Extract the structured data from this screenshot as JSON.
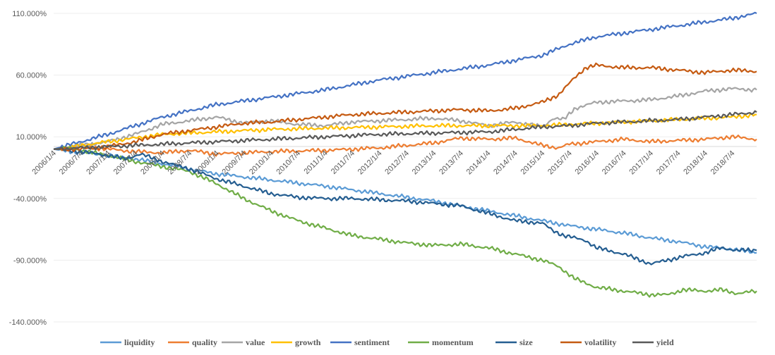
{
  "chart_data": {
    "type": "line",
    "title": "",
    "xlabel": "",
    "ylabel": "",
    "ylim": [
      -140,
      110
    ],
    "ytick_values": [
      110,
      60,
      10,
      -40,
      -90,
      -140
    ],
    "ytick_labels": [
      "110.000%",
      "60.000%",
      "10.000%",
      "-40.000%",
      "-90.000%",
      "-140.000%"
    ],
    "x_range": [
      2006.0,
      2018.95
    ],
    "x_tick_positions": [
      2006.0,
      2006.5,
      2007.0,
      2007.5,
      2008.0,
      2008.5,
      2009.0,
      2009.5,
      2010.0,
      2010.5,
      2011.0,
      2011.5,
      2012.0,
      2012.5,
      2013.0,
      2013.5,
      2014.0,
      2014.5,
      2015.0,
      2015.5,
      2016.0,
      2016.5,
      2017.0,
      2017.5,
      2018.0,
      2018.5
    ],
    "x_tick_labels": [
      "2006/1/4",
      "2006/7/4",
      "2007/1/4",
      "2007/7/4",
      "2008/1/4",
      "2008/7/4",
      "2009/1/4",
      "2009/7/4",
      "2010/1/4",
      "2010/7/4",
      "2011/1/4",
      "2011/7/4",
      "2012/1/4",
      "2012/7/4",
      "2013/1/4",
      "2013/7/4",
      "2014/1/4",
      "2014/7/4",
      "2015/1/4",
      "2015/7/4",
      "2016/1/4",
      "2016/7/4",
      "2017/1/4",
      "2017/7/4",
      "2018/1/4",
      "2018/7/4"
    ],
    "legend_position": "bottom",
    "series": [
      {
        "name": "liquidity",
        "color": "#5B9BD5",
        "x": [
          2006.0,
          2006.5,
          2007.0,
          2007.5,
          2008.0,
          2008.5,
          2009.0,
          2010.0,
          2011.0,
          2012.0,
          2013.0,
          2014.0,
          2015.0,
          2015.5,
          2016.0,
          2016.5,
          2017.0,
          2017.5,
          2018.0,
          2018.5,
          2018.95
        ],
        "values": [
          0,
          -3,
          -5,
          -8,
          -12,
          -16,
          -20,
          -25,
          -30,
          -36,
          -42,
          -50,
          -58,
          -62,
          -65,
          -68,
          -72,
          -75,
          -79,
          -81,
          -84
        ]
      },
      {
        "name": "quality",
        "color": "#ED7D31",
        "x": [
          2006.0,
          2006.5,
          2007.0,
          2007.5,
          2008.0,
          2008.5,
          2009.0,
          2009.5,
          2010.0,
          2011.0,
          2012.0,
          2013.0,
          2013.5,
          2014.0,
          2014.5,
          2015.0,
          2015.3,
          2015.5,
          2016.0,
          2016.5,
          2017.0,
          2017.5,
          2018.0,
          2018.5,
          2018.95
        ],
        "values": [
          0,
          2,
          0,
          -2,
          -3,
          -1,
          -4,
          -3,
          -2,
          -1,
          1,
          5,
          9,
          8,
          9,
          3,
          1,
          4,
          6,
          8,
          6,
          7,
          8,
          10,
          8
        ]
      },
      {
        "name": "value",
        "color": "#A5A5A5",
        "x": [
          2006.0,
          2006.5,
          2007.0,
          2007.5,
          2008.0,
          2008.5,
          2009.0,
          2009.5,
          2010.0,
          2010.5,
          2011.0,
          2011.5,
          2012.0,
          2012.5,
          2013.0,
          2013.5,
          2014.0,
          2014.5,
          2015.0,
          2015.2,
          2015.4,
          2015.6,
          2016.0,
          2016.5,
          2017.0,
          2017.5,
          2018.0,
          2018.5,
          2018.95
        ],
        "values": [
          0,
          3,
          6,
          12,
          20,
          23,
          26,
          21,
          23,
          20,
          19,
          22,
          23,
          24,
          25,
          23,
          19,
          22,
          18,
          25,
          24,
          33,
          38,
          39,
          40,
          43,
          47,
          49,
          48
        ]
      },
      {
        "name": "growth",
        "color": "#FFC000",
        "x": [
          2006.0,
          2006.5,
          2007.0,
          2007.5,
          2008.0,
          2009.0,
          2010.0,
          2011.0,
          2012.0,
          2013.0,
          2014.0,
          2015.0,
          2015.5,
          2016.0,
          2016.5,
          2017.0,
          2017.5,
          2018.0,
          2018.5,
          2018.95
        ],
        "values": [
          0,
          3,
          6,
          9,
          12,
          14,
          16,
          17,
          18,
          19,
          19,
          19,
          20,
          21,
          22,
          23,
          24,
          25,
          26,
          28
        ]
      },
      {
        "name": "sentiment",
        "color": "#4472C4",
        "x": [
          2006.0,
          2006.5,
          2007.0,
          2007.5,
          2008.0,
          2008.5,
          2009.0,
          2010.0,
          2011.0,
          2012.0,
          2013.0,
          2014.0,
          2015.0,
          2015.5,
          2016.0,
          2016.5,
          2017.0,
          2017.5,
          2018.0,
          2018.5,
          2018.95
        ],
        "values": [
          0,
          6,
          12,
          19,
          26,
          31,
          36,
          42,
          48,
          56,
          62,
          68,
          76,
          85,
          91,
          94,
          97,
          100,
          103,
          106,
          110
        ]
      },
      {
        "name": "momentum",
        "color": "#70AD47",
        "x": [
          2006.0,
          2006.3,
          2006.6,
          2007.0,
          2007.5,
          2008.0,
          2008.5,
          2009.0,
          2009.5,
          2010.0,
          2010.5,
          2011.0,
          2011.5,
          2012.0,
          2012.5,
          2013.0,
          2013.5,
          2014.0,
          2014.5,
          2015.0,
          2015.3,
          2015.6,
          2016.0,
          2016.5,
          2017.0,
          2017.3,
          2017.6,
          2018.0,
          2018.3,
          2018.6,
          2018.95
        ],
        "values": [
          0,
          1,
          -2,
          -5,
          -10,
          -14,
          -18,
          -28,
          -40,
          -50,
          -58,
          -64,
          -70,
          -73,
          -76,
          -78,
          -77,
          -80,
          -85,
          -90,
          -95,
          -105,
          -112,
          -115,
          -118,
          -118,
          -114,
          -115,
          -114,
          -117,
          -115
        ]
      },
      {
        "name": "size",
        "color": "#255E91",
        "x": [
          2006.0,
          2006.5,
          2007.0,
          2007.3,
          2007.6,
          2008.0,
          2008.5,
          2009.0,
          2009.5,
          2010.0,
          2010.5,
          2011.0,
          2011.5,
          2012.0,
          2012.5,
          2013.0,
          2013.5,
          2014.0,
          2014.5,
          2015.0,
          2015.2,
          2015.4,
          2015.6,
          2015.8,
          2016.0,
          2016.5,
          2017.0,
          2017.3,
          2017.6,
          2018.0,
          2018.3,
          2018.6,
          2018.95
        ],
        "values": [
          0,
          -2,
          -5,
          -8,
          -4,
          -10,
          -16,
          -24,
          -30,
          -36,
          -39,
          -40,
          -40,
          -41,
          -42,
          -44,
          -46,
          -52,
          -58,
          -60,
          -66,
          -70,
          -72,
          -74,
          -80,
          -85,
          -93,
          -90,
          -87,
          -84,
          -80,
          -82,
          -82
        ]
      },
      {
        "name": "volatility",
        "color": "#C55A11",
        "x": [
          2006.0,
          2006.5,
          2007.0,
          2007.5,
          2008.0,
          2008.5,
          2009.0,
          2009.5,
          2010.0,
          2010.5,
          2011.0,
          2011.5,
          2012.0,
          2012.5,
          2013.0,
          2013.5,
          2014.0,
          2014.5,
          2015.0,
          2015.3,
          2015.6,
          2015.8,
          2016.0,
          2016.5,
          2017.0,
          2017.5,
          2018.0,
          2018.5,
          2018.95
        ],
        "values": [
          0,
          0,
          2,
          6,
          12,
          15,
          18,
          21,
          22,
          24,
          26,
          28,
          29,
          30,
          31,
          32,
          31,
          33,
          38,
          44,
          58,
          66,
          68,
          66,
          66,
          64,
          62,
          64,
          63
        ]
      },
      {
        "name": "yield",
        "color": "#595959",
        "x": [
          2006.0,
          2006.5,
          2007.0,
          2007.5,
          2008.0,
          2008.5,
          2009.0,
          2010.0,
          2011.0,
          2012.0,
          2013.0,
          2014.0,
          2015.0,
          2015.5,
          2016.0,
          2016.5,
          2017.0,
          2017.5,
          2018.0,
          2018.5,
          2018.95
        ],
        "values": [
          0,
          1,
          2,
          3,
          4,
          5,
          6,
          8,
          10,
          12,
          13,
          14,
          18,
          19,
          21,
          22,
          23,
          24,
          26,
          28,
          30
        ]
      }
    ]
  }
}
